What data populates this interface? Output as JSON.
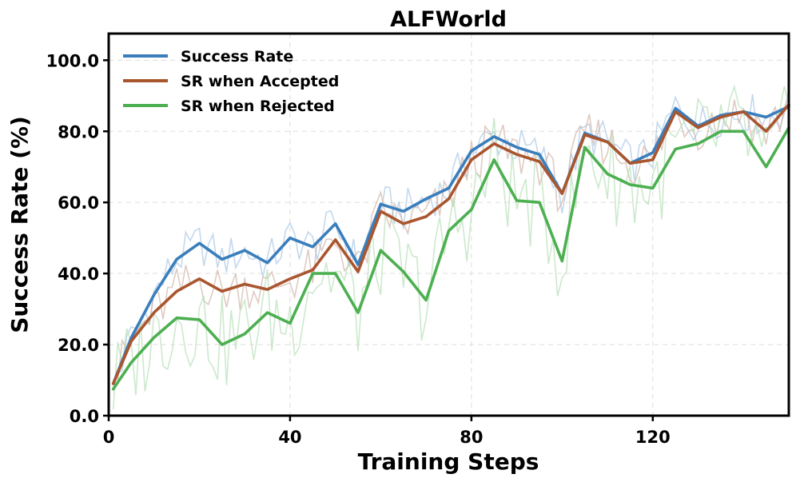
{
  "chart_data": {
    "type": "line",
    "title": "ALFWorld",
    "xlabel": "Training Steps",
    "ylabel": "Success Rate (%)",
    "xlim": [
      0,
      150
    ],
    "ylim": [
      0,
      107.5
    ],
    "x_ticks": [
      "0",
      "40",
      "80",
      "120"
    ],
    "x_tick_values": [
      0,
      40,
      80,
      120
    ],
    "y_ticks": [
      "0.0",
      "20.0",
      "40.0",
      "60.0",
      "80.0",
      "100.0"
    ],
    "y_tick_values": [
      0,
      20,
      40,
      60,
      80,
      100
    ],
    "grid": true,
    "legend_position": "top-left",
    "series": [
      {
        "name": "Success Rate",
        "color": "#3a7ebc",
        "raw_color": "#a9c8e6",
        "x": [
          1,
          5,
          10,
          15,
          20,
          25,
          30,
          35,
          40,
          45,
          50,
          55,
          60,
          65,
          70,
          75,
          80,
          85,
          90,
          95,
          100,
          105,
          110,
          115,
          120,
          125,
          130,
          135,
          140,
          145,
          150
        ],
        "values": [
          9.0,
          22.0,
          34.0,
          44.0,
          48.5,
          44.0,
          46.5,
          43.0,
          50.0,
          47.5,
          54.0,
          42.5,
          59.5,
          57.5,
          61.0,
          64.0,
          74.5,
          78.5,
          75.5,
          73.5,
          62.5,
          79.5,
          77.0,
          71.0,
          74.0,
          86.5,
          81.5,
          84.5,
          85.5,
          84.0,
          87.0
        ]
      },
      {
        "name": "SR when Accepted",
        "color": "#a9562f",
        "raw_color": "#d2b5a8",
        "x": [
          1,
          5,
          10,
          15,
          20,
          25,
          30,
          35,
          40,
          45,
          50,
          55,
          60,
          65,
          70,
          75,
          80,
          85,
          90,
          95,
          100,
          105,
          110,
          115,
          120,
          125,
          130,
          135,
          140,
          145,
          150
        ],
        "values": [
          9.0,
          21.0,
          29.0,
          35.0,
          38.5,
          35.0,
          37.0,
          35.5,
          38.5,
          41.0,
          49.5,
          40.5,
          57.5,
          54.0,
          56.0,
          61.0,
          72.0,
          76.5,
          73.5,
          71.5,
          62.5,
          79.0,
          77.0,
          71.0,
          72.0,
          85.5,
          81.0,
          84.0,
          85.5,
          80.0,
          87.5
        ]
      },
      {
        "name": "SR when Rejected",
        "color": "#4caf50",
        "raw_color": "#b7e0b8",
        "x": [
          1,
          5,
          10,
          15,
          20,
          25,
          30,
          35,
          40,
          45,
          50,
          55,
          60,
          65,
          70,
          75,
          80,
          85,
          90,
          95,
          100,
          105,
          110,
          115,
          120,
          125,
          130,
          135,
          140,
          145,
          150
        ],
        "values": [
          7.5,
          15.0,
          22.0,
          27.5,
          27.0,
          20.0,
          23.0,
          29.0,
          26.0,
          40.0,
          40.0,
          29.0,
          46.5,
          40.5,
          32.5,
          52.0,
          58.0,
          72.0,
          60.5,
          60.0,
          43.5,
          75.5,
          68.0,
          65.0,
          64.0,
          75.0,
          76.5,
          80.0,
          80.0,
          70.0,
          81.0
        ]
      }
    ]
  }
}
